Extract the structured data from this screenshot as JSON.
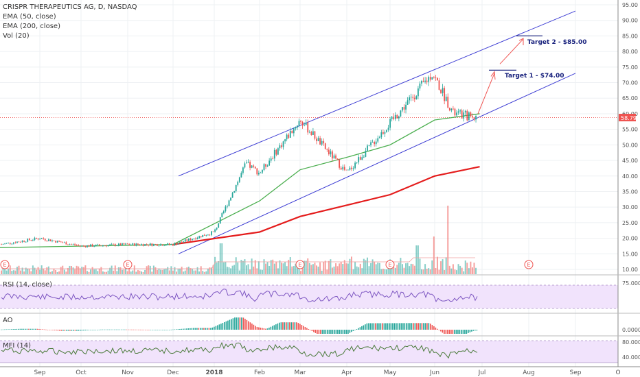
{
  "legend": {
    "title": "CRISPR THERAPEUTICS AG, D, NASDAQ",
    "ema50": "EMA (50, close)",
    "ema200": "EMA (200, close)",
    "vol": "Vol (20)"
  },
  "price_axis": {
    "ticks": [
      "95.00",
      "90.00",
      "85.00",
      "80.00",
      "75.00",
      "70.00",
      "65.00",
      "60.00",
      "55.00",
      "50.00",
      "45.00",
      "40.00",
      "35.00",
      "30.00",
      "25.00",
      "20.00",
      "15.00",
      "10.00"
    ],
    "last_price": "58.79"
  },
  "rsi_panel": {
    "label": "RSI (14, close)",
    "tick": "75.0000"
  },
  "ao_panel": {
    "label": "AO",
    "tick": "0.0000"
  },
  "mfi_panel": {
    "label": "MFI (14)",
    "ticks": [
      "80.0000",
      "40.0000"
    ]
  },
  "x_labels": [
    "Sep",
    "Oct",
    "Nov",
    "Dec",
    "2018",
    "Feb",
    "Mar",
    "Apr",
    "May",
    "Jun",
    "Jul",
    "Aug",
    "Sep",
    "O"
  ],
  "annotations": {
    "target1": "Target 1 - $74.00",
    "target2": "Target 2 - $85.00"
  },
  "earnings_marker": "E",
  "colors": {
    "up": "#26a69a",
    "down": "#ef5350",
    "ema50": "#4caf50",
    "ema200": "#e41c1c",
    "channel": "#3f3fd4",
    "annotation": "#1a237e",
    "price_line": "#ef5350",
    "rsi_band": "#f1e3fc",
    "rsi_line": "#7e57c2",
    "mfi_line": "#4a7a3a"
  },
  "chart_data": {
    "type": "candlestick",
    "symbol": "CRISPR THERAPEUTICS AG",
    "interval": "D",
    "exchange": "NASDAQ",
    "x_range": [
      "Aug 2017",
      "Oct 2018"
    ],
    "ylim": [
      8,
      96
    ],
    "last_price": 58.79,
    "price_path": [
      {
        "date": "Aug 2017",
        "close": 18
      },
      {
        "date": "Sep 2017",
        "close": 20
      },
      {
        "date": "Oct 2017",
        "close": 17.5
      },
      {
        "date": "Nov 2017",
        "close": 18
      },
      {
        "date": "Dec 2017",
        "close": 18
      },
      {
        "date": "Jan 2018",
        "close": 22
      },
      {
        "date": "Late Jan 2018",
        "close": 44
      },
      {
        "date": "Feb 2018",
        "close": 41
      },
      {
        "date": "Mar 2018",
        "close": 58
      },
      {
        "date": "Apr 2018",
        "close": 41
      },
      {
        "date": "May 2018",
        "close": 57
      },
      {
        "date": "Early Jun 2018",
        "close": 73
      },
      {
        "date": "Mid Jun 2018",
        "close": 60
      },
      {
        "date": "Late Jun 2018",
        "close": 58.79
      }
    ],
    "ema50_path": [
      {
        "date": "Aug 2017",
        "value": 17
      },
      {
        "date": "Dec 2017",
        "value": 18
      },
      {
        "date": "Feb 2018",
        "value": 32
      },
      {
        "date": "Mar 2018",
        "value": 42
      },
      {
        "date": "Apr 2018",
        "value": 46
      },
      {
        "date": "May 2018",
        "value": 50
      },
      {
        "date": "Jun 2018",
        "value": 58
      },
      {
        "date": "Late Jun 2018",
        "value": 60
      }
    ],
    "ema200_path": [
      {
        "date": "Dec 2017",
        "value": 18
      },
      {
        "date": "Feb 2018",
        "value": 22
      },
      {
        "date": "Mar 2018",
        "value": 27
      },
      {
        "date": "May 2018",
        "value": 34
      },
      {
        "date": "Jun 2018",
        "value": 40
      },
      {
        "date": "Late Jun 2018",
        "value": 43
      }
    ],
    "channel": {
      "upper": [
        {
          "date": "Dec 2017",
          "value": 40
        },
        {
          "date": "Sep 2018",
          "value": 93
        }
      ],
      "lower": [
        {
          "date": "Dec 2017",
          "value": 15
        },
        {
          "date": "Sep 2018",
          "value": 73
        }
      ]
    },
    "targets": [
      {
        "label": "Target 1 - $74.00",
        "value": 74
      },
      {
        "label": "Target 2 - $85.00",
        "value": 85
      }
    ],
    "earnings_dates": [
      "Aug 2017",
      "Nov 2017",
      "Mar 2018",
      "May 2018",
      "Aug 2018"
    ],
    "volume_peaks": [
      {
        "date": "Dec 2017",
        "value": "high"
      },
      {
        "date": "Jun 2018",
        "value": "highest"
      }
    ],
    "indicators": [
      "RSI (14, close)",
      "AO",
      "MFI (14)"
    ]
  }
}
